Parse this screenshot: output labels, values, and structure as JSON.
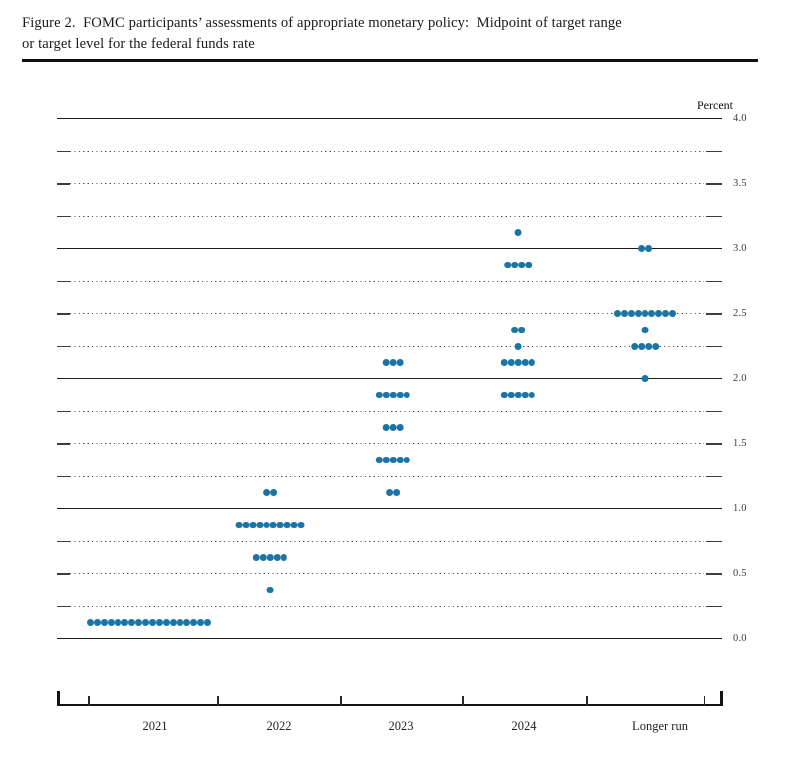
{
  "document": {
    "title_line1": "Figure 2.  FOMC participants’ assessments of appropriate monetary policy:  Midpoint of target range",
    "title_line2": "or target level for the federal funds rate"
  },
  "chart_data": {
    "type": "scatter",
    "subtype": "fomc-dot-plot",
    "title": "Figure 2. FOMC participants’ assessments of appropriate monetary policy: Midpoint of target range or target level for the federal funds rate",
    "ylabel": "Percent",
    "xlabel": "",
    "ylim": [
      0.0,
      4.0
    ],
    "grid_step": 0.25,
    "solid_gridline_step": 1.0,
    "grid": "dotted at quarter points, solid at whole percents",
    "legend_position": "none",
    "y_axis_labels": [
      "4.0",
      "3.5",
      "3.0",
      "2.5",
      "2.0",
      "1.5",
      "1.0",
      "0.5",
      "0.0"
    ],
    "categories": [
      "2021",
      "2022",
      "2023",
      "2024",
      "Longer run"
    ],
    "series": [
      {
        "name": "2021",
        "distribution": [
          {
            "rate": 0.125,
            "count": 18
          }
        ]
      },
      {
        "name": "2022",
        "distribution": [
          {
            "rate": 1.125,
            "count": 2
          },
          {
            "rate": 0.875,
            "count": 10
          },
          {
            "rate": 0.625,
            "count": 5
          },
          {
            "rate": 0.375,
            "count": 1
          }
        ]
      },
      {
        "name": "2023",
        "distribution": [
          {
            "rate": 2.125,
            "count": 3
          },
          {
            "rate": 1.875,
            "count": 5
          },
          {
            "rate": 1.625,
            "count": 3
          },
          {
            "rate": 1.375,
            "count": 5
          },
          {
            "rate": 1.125,
            "count": 2
          }
        ]
      },
      {
        "name": "2024",
        "distribution": [
          {
            "rate": 3.125,
            "count": 1
          },
          {
            "rate": 2.875,
            "count": 4
          },
          {
            "rate": 2.375,
            "count": 2
          },
          {
            "rate": 2.25,
            "count": 1
          },
          {
            "rate": 2.125,
            "count": 5
          },
          {
            "rate": 1.875,
            "count": 5
          }
        ]
      },
      {
        "name": "Longer run",
        "distribution": [
          {
            "rate": 3.0,
            "count": 2
          },
          {
            "rate": 2.5,
            "count": 9
          },
          {
            "rate": 2.375,
            "count": 1
          },
          {
            "rate": 2.25,
            "count": 4
          },
          {
            "rate": 2.0,
            "count": 1
          }
        ]
      }
    ]
  },
  "colors": {
    "dot": "#1b74a4",
    "axis": "#141414",
    "dotted_grid": "#4d4d4d",
    "tick_label": "#3b3b3b"
  }
}
